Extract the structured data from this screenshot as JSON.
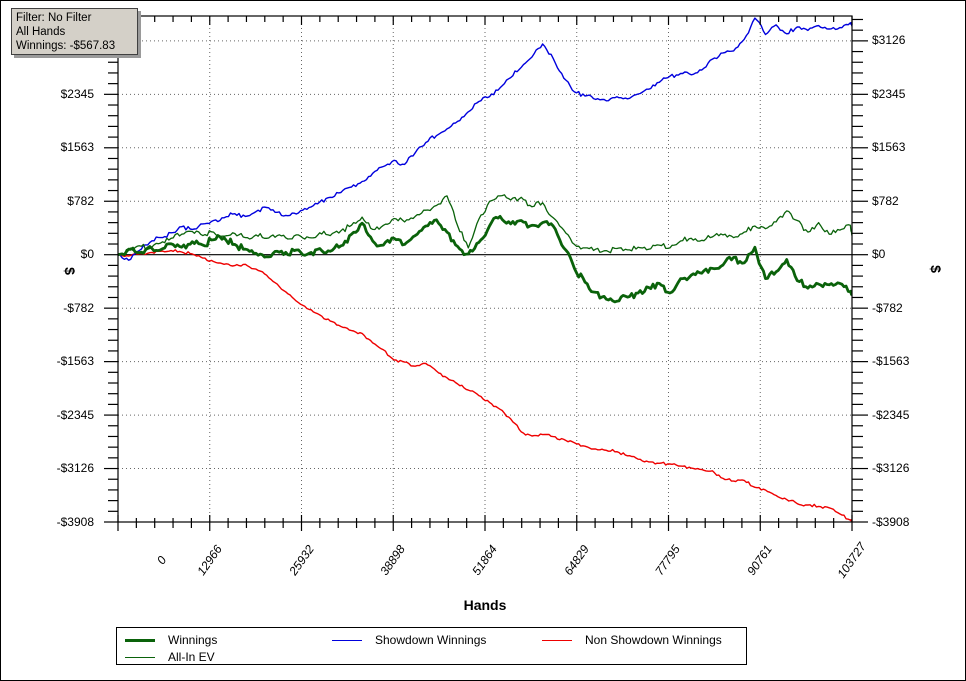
{
  "info_box": {
    "filter_line": "Filter: No Filter",
    "hands_line": "All Hands",
    "winnings_line": "Winnings: -$567.83"
  },
  "axes": {
    "x": {
      "title": "Hands",
      "tick_labels": [
        "0",
        "12966",
        "25932",
        "38898",
        "51864",
        "64829",
        "77795",
        "90761",
        "103727"
      ],
      "tick_values": [
        0,
        12966,
        25932,
        38898,
        51864,
        64829,
        77795,
        90761,
        103727
      ],
      "minor_divisions": 5
    },
    "y": {
      "title_left": "$",
      "title_right": "$",
      "tick_labels": [
        "$3126",
        "$2345",
        "$1563",
        "$782",
        "$0",
        "-$782",
        "-$1563",
        "-$2345",
        "-$3126",
        "-$3908"
      ],
      "tick_values": [
        3126,
        2345,
        1563,
        782,
        0,
        -782,
        -1563,
        -2345,
        -3126,
        -3908
      ],
      "minor_step": 156.32
    }
  },
  "chart_data": {
    "type": "line",
    "title": "",
    "xlabel": "Hands",
    "ylabel": "$",
    "xlim": [
      0,
      103727
    ],
    "ylim": [
      -3908,
      3490
    ],
    "grid": "dotted",
    "grid_color": "#666666",
    "axis_color": "#000000",
    "zero_line": true,
    "legend_position": "bottom",
    "x": [
      0,
      1500,
      3000,
      4500,
      6000,
      7500,
      9000,
      10500,
      12000,
      13500,
      15000,
      16500,
      18000,
      19500,
      21000,
      22500,
      24000,
      25500,
      27000,
      28500,
      30000,
      31500,
      33000,
      34500,
      36000,
      37500,
      39000,
      40500,
      42000,
      43500,
      45000,
      46500,
      48000,
      49500,
      51000,
      52500,
      54000,
      55500,
      57000,
      58500,
      60000,
      61500,
      63000,
      64500,
      66000,
      67500,
      69000,
      70500,
      72000,
      73500,
      75000,
      76500,
      78000,
      79500,
      81000,
      82500,
      84000,
      85500,
      87000,
      88500,
      90000,
      91500,
      93000,
      94500,
      96000,
      97500,
      99000,
      100500,
      102000,
      103500,
      103727
    ],
    "series": [
      {
        "name": "Winnings",
        "color": "#0a620a",
        "width": 2.8,
        "jitter": 70,
        "values": [
          0,
          80,
          30,
          120,
          70,
          160,
          110,
          190,
          140,
          220,
          250,
          150,
          80,
          20,
          -30,
          50,
          0,
          70,
          20,
          90,
          50,
          130,
          300,
          460,
          200,
          140,
          240,
          150,
          280,
          420,
          510,
          330,
          120,
          10,
          180,
          420,
          560,
          450,
          500,
          430,
          470,
          420,
          100,
          -200,
          -400,
          -550,
          -650,
          -680,
          -620,
          -560,
          -480,
          -420,
          -560,
          -350,
          -300,
          -270,
          -200,
          -150,
          -40,
          -120,
          110,
          -350,
          -250,
          -70,
          -380,
          -490,
          -430,
          -440,
          -420,
          -540,
          -568
        ]
      },
      {
        "name": "All-In EV",
        "color": "#0a620a",
        "width": 1.3,
        "jitter": 55,
        "values": [
          0,
          70,
          130,
          90,
          170,
          240,
          300,
          340,
          280,
          330,
          270,
          310,
          250,
          290,
          240,
          280,
          230,
          290,
          250,
          320,
          280,
          350,
          430,
          550,
          370,
          430,
          530,
          480,
          560,
          650,
          720,
          860,
          420,
          100,
          520,
          780,
          860,
          800,
          840,
          700,
          760,
          540,
          360,
          150,
          100,
          80,
          60,
          90,
          70,
          110,
          80,
          140,
          100,
          200,
          240,
          210,
          260,
          290,
          250,
          330,
          420,
          380,
          480,
          640,
          500,
          330,
          470,
          300,
          360,
          430,
          280
        ]
      },
      {
        "name": "Showdown Winnings",
        "color": "#0000dd",
        "width": 1.4,
        "jitter": 45,
        "values": [
          0,
          -80,
          60,
          180,
          250,
          320,
          410,
          370,
          450,
          500,
          540,
          600,
          560,
          630,
          690,
          620,
          570,
          610,
          690,
          770,
          840,
          910,
          990,
          1070,
          1190,
          1290,
          1380,
          1320,
          1490,
          1640,
          1740,
          1840,
          1950,
          2090,
          2240,
          2310,
          2440,
          2590,
          2740,
          2890,
          3080,
          2870,
          2580,
          2380,
          2320,
          2270,
          2250,
          2310,
          2280,
          2350,
          2420,
          2520,
          2610,
          2650,
          2630,
          2700,
          2860,
          2950,
          2980,
          3150,
          3460,
          3220,
          3360,
          3230,
          3330,
          3280,
          3350,
          3300,
          3320,
          3390,
          3340
        ]
      },
      {
        "name": "Non Showdown Winnings",
        "color": "#ee0000",
        "width": 1.4,
        "jitter": 28,
        "values": [
          0,
          -20,
          10,
          30,
          50,
          60,
          40,
          10,
          -50,
          -100,
          -140,
          -160,
          -140,
          -210,
          -300,
          -430,
          -570,
          -700,
          -800,
          -880,
          -970,
          -1050,
          -1110,
          -1150,
          -1290,
          -1390,
          -1540,
          -1570,
          -1630,
          -1590,
          -1700,
          -1800,
          -1890,
          -1980,
          -2060,
          -2160,
          -2260,
          -2400,
          -2590,
          -2650,
          -2630,
          -2660,
          -2700,
          -2750,
          -2800,
          -2840,
          -2860,
          -2880,
          -2940,
          -2990,
          -3030,
          -3050,
          -3060,
          -3090,
          -3120,
          -3140,
          -3160,
          -3270,
          -3310,
          -3300,
          -3400,
          -3440,
          -3520,
          -3580,
          -3640,
          -3660,
          -3680,
          -3700,
          -3790,
          -3880,
          -3908
        ]
      }
    ]
  }
}
